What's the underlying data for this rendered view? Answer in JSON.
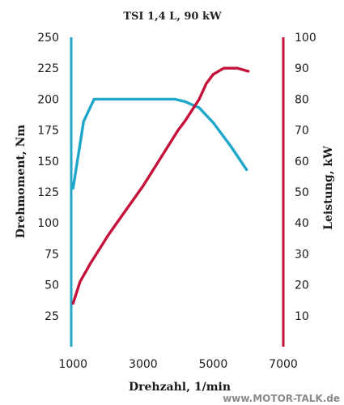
{
  "chart_data": {
    "type": "line",
    "title": "TSI 1,4 L, 90 kW",
    "xlabel": "Drehzahl, 1/min",
    "ylabel_left": "Drehmoment, Nm",
    "ylabel_right": "Leistung, kW",
    "xlim": [
      0,
      7000
    ],
    "ylim_left": [
      0,
      250
    ],
    "ylim_right": [
      0,
      100
    ],
    "x_ticks": [
      1000,
      3000,
      5000,
      7000
    ],
    "y_left_ticks": [
      25,
      50,
      75,
      100,
      125,
      150,
      175,
      200,
      225,
      250
    ],
    "y_right_ticks": [
      10,
      20,
      30,
      40,
      50,
      60,
      70,
      80,
      90,
      100
    ],
    "grid": false,
    "left_axis_color": "#22a8c4",
    "right_axis_color": "#c4123a",
    "series": [
      {
        "axis": "left",
        "color": "#1ea7c9",
        "points": [
          [
            1000,
            128
          ],
          [
            1300,
            182
          ],
          [
            1600,
            200
          ],
          [
            2000,
            200
          ],
          [
            2500,
            200
          ],
          [
            3000,
            200
          ],
          [
            3500,
            200
          ],
          [
            3900,
            200
          ],
          [
            4200,
            198
          ],
          [
            4600,
            193
          ],
          [
            5000,
            181
          ],
          [
            5500,
            162
          ],
          [
            5950,
            143
          ]
        ]
      },
      {
        "axis": "right",
        "color": "#c4123a",
        "points": [
          [
            1000,
            14
          ],
          [
            1200,
            21
          ],
          [
            1500,
            27
          ],
          [
            2000,
            36
          ],
          [
            2500,
            44
          ],
          [
            3000,
            52
          ],
          [
            3500,
            61
          ],
          [
            4000,
            70
          ],
          [
            4200,
            73
          ],
          [
            4600,
            80
          ],
          [
            4800,
            85
          ],
          [
            5000,
            88
          ],
          [
            5300,
            90
          ],
          [
            5700,
            90
          ],
          [
            6000,
            89
          ]
        ]
      }
    ]
  },
  "watermark": "www.MOTOR-TALK.de"
}
